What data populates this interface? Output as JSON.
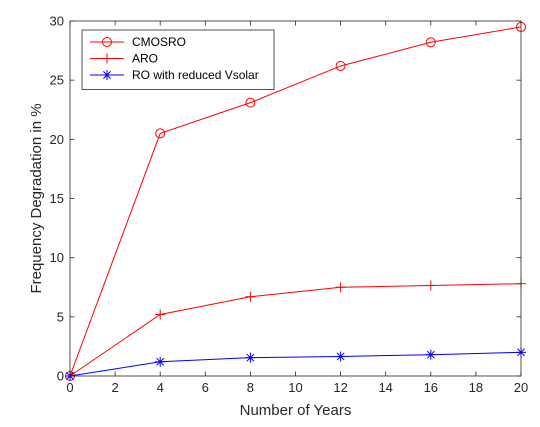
{
  "chart_data": {
    "type": "line",
    "title": "",
    "xlabel": "Number of Years",
    "ylabel": "Frequency Degradation in %",
    "xlim": [
      0,
      20
    ],
    "ylim": [
      0,
      30
    ],
    "xticks": [
      0,
      2,
      4,
      6,
      8,
      10,
      12,
      14,
      16,
      18,
      20
    ],
    "yticks": [
      0,
      5,
      10,
      15,
      20,
      25,
      30
    ],
    "grid": false,
    "legend_position": "top-left",
    "x": [
      0,
      4,
      8,
      12,
      16,
      20
    ],
    "series": [
      {
        "name": "CMOSRO",
        "values": [
          0,
          20.5,
          23.1,
          26.2,
          28.2,
          29.5
        ],
        "color": "#ff0000",
        "marker": "circle"
      },
      {
        "name": "ARO",
        "values": [
          0,
          5.2,
          6.7,
          7.5,
          7.65,
          7.8
        ],
        "color": "#ff0000",
        "marker": "plus"
      },
      {
        "name": "RO with reduced Vsolar",
        "values": [
          0,
          1.2,
          1.55,
          1.65,
          1.8,
          2.0
        ],
        "color": "#0000ff",
        "marker": "asterisk"
      }
    ]
  }
}
